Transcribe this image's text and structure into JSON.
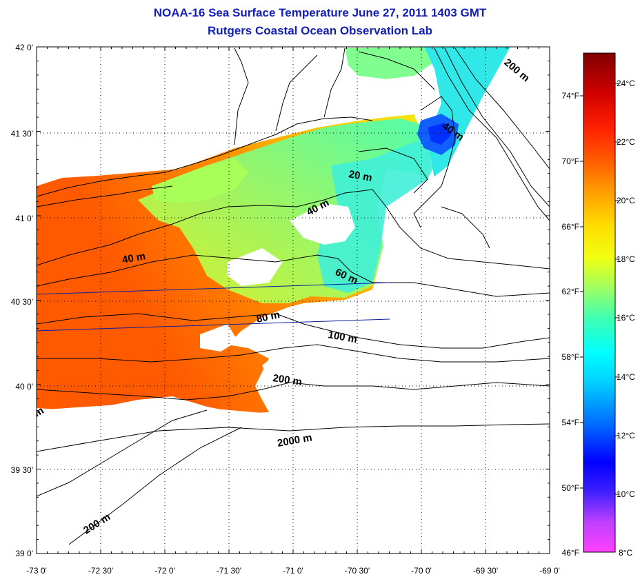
{
  "title": "NOAA-16 Sea Surface Temperature June 27, 2011 1403 GMT",
  "subtitle": "Rutgers Coastal Ocean Observation Lab",
  "map": {
    "lon_range": [
      -73,
      -69
    ],
    "lat_range": [
      39,
      42
    ],
    "lon_ticks": [
      "-73 0'",
      "-72 30'",
      "-72 0'",
      "-71 30'",
      "-71 0'",
      "-70 30'",
      "-70 0'",
      "-69 30'",
      "-69 0'"
    ],
    "lat_ticks": [
      "42 0'",
      "41 30'",
      "41 0'",
      "40 30'",
      "40 0'",
      "39 30'",
      "39 0'"
    ],
    "grid": "dotted",
    "contour_labels": [
      "20 m",
      "40 m",
      "40 m",
      "40 m",
      "60 m",
      "80 m",
      "100 m",
      "200 m",
      "200 m",
      "200 m",
      "2000 m",
      "m"
    ]
  },
  "colorbar": {
    "celsius_labels": [
      "24°C",
      "22°C",
      "20°C",
      "18°C",
      "16°C",
      "14°C",
      "12°C",
      "10°C",
      "8°C"
    ],
    "fahrenheit_labels": [
      "74°F",
      "70°F",
      "66°F",
      "62°F",
      "58°F",
      "54°F",
      "50°F",
      "46°F"
    ],
    "range_celsius": [
      8,
      25
    ],
    "colormap": [
      "#ff40ff",
      "#8040ff",
      "#0000ff",
      "#0060ff",
      "#00c0ff",
      "#00ffff",
      "#00ffc0",
      "#60ff80",
      "#c0ff40",
      "#ffff00",
      "#ffc000",
      "#ff8000",
      "#ff4000",
      "#ff0000",
      "#c00000",
      "#800000"
    ]
  }
}
